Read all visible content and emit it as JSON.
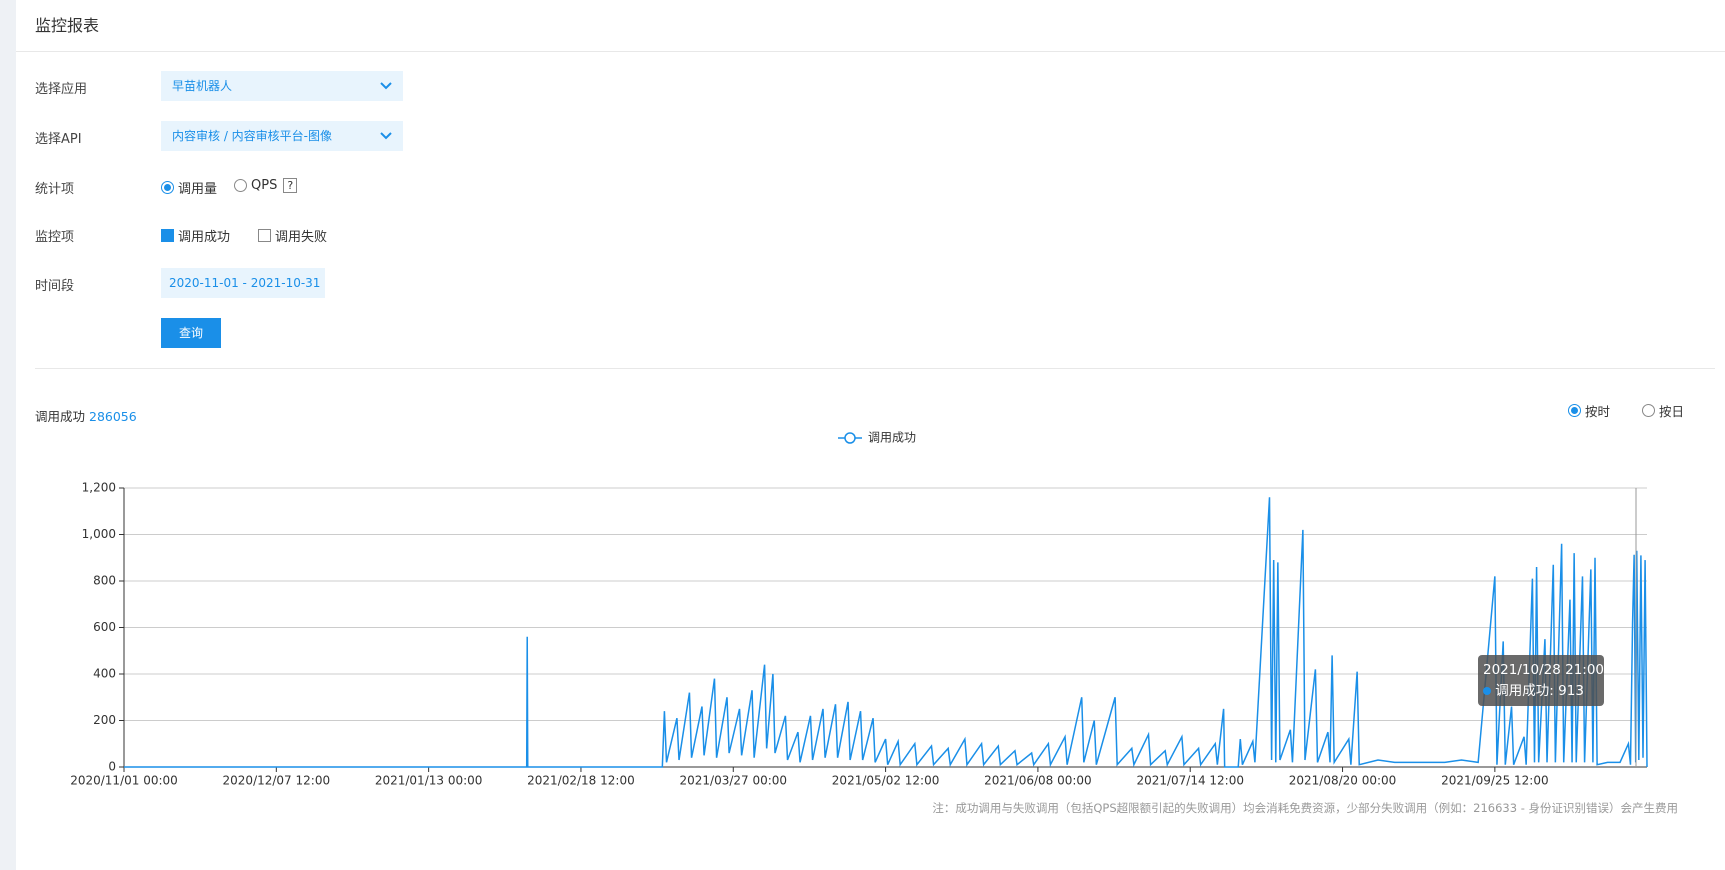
{
  "header": {
    "title": "监控报表"
  },
  "form": {
    "app": {
      "label": "选择应用",
      "value": "早苗机器人"
    },
    "api": {
      "label": "选择API",
      "value": "内容审核 / 内容审核平台-图像"
    },
    "stat": {
      "label": "统计项",
      "options": [
        "调用量",
        "QPS"
      ],
      "help": "?"
    },
    "monitor": {
      "label": "监控项",
      "options": [
        "调用成功",
        "调用失败"
      ]
    },
    "period": {
      "label": "时间段",
      "value": "2020-11-01 - 2021-10-31"
    },
    "submit": "查询"
  },
  "summary": {
    "label": "调用成功",
    "value": 286056
  },
  "granularity": [
    "按时",
    "按日"
  ],
  "tooltip": {
    "title": "2021/10/28 21:00",
    "label": "调用成功",
    "value": 913
  },
  "note": "注：成功调用与失败调用（包括QPS超限额引起的失败调用）均会消耗免费资源，少部分失败调用（例如：216633 - 身份证识别错误）会产生费用",
  "chart_data": {
    "type": "line",
    "grid": true,
    "xlim": [
      "2020/11/01 00:00",
      "2021/10/31 23:00"
    ],
    "xticks": [
      "2020/11/01 00:00",
      "2020/12/07 12:00",
      "2021/01/13 00:00",
      "2021/02/18 12:00",
      "2021/03/27 00:00",
      "2021/05/02 12:00",
      "2021/06/08 00:00",
      "2021/07/14 12:00",
      "2021/08/20 00:00",
      "2021/09/25 12:00"
    ],
    "ylim": [
      0,
      1200
    ],
    "yticks": [
      0,
      200,
      400,
      600,
      800,
      {
        "value": 1000,
        "label": "1,000"
      },
      {
        "value": 1200,
        "label": "1,200"
      }
    ],
    "x": [
      "2020/11/01 00:00",
      "2021/02/05 12:00",
      "2021/02/05 15:00",
      "2021/02/05 18:00",
      "2021/03/10 00:00",
      "2021/03/10 12:00",
      "2021/03/11 00:00",
      "2021/03/13 12:00",
      "2021/03/14 00:00",
      "2021/03/16 12:00",
      "2021/03/17 00:00",
      "2021/03/19 12:00",
      "2021/03/20 00:00",
      "2021/03/22 12:00",
      "2021/03/23 00:00",
      "2021/03/25 12:00",
      "2021/03/26 00:00",
      "2021/03/28 12:00",
      "2021/03/29 00:00",
      "2021/03/31 12:00",
      "2021/04/01 00:00",
      "2021/04/03 12:00",
      "2021/04/04 00:00",
      "2021/04/05 12:00",
      "2021/04/06 00:00",
      "2021/04/08 12:00",
      "2021/04/09 00:00",
      "2021/04/11 12:00",
      "2021/04/12 00:00",
      "2021/04/14 12:00",
      "2021/04/15 00:00",
      "2021/04/17 12:00",
      "2021/04/18 00:00",
      "2021/04/20 12:00",
      "2021/04/21 00:00",
      "2021/04/23 12:00",
      "2021/04/24 00:00",
      "2021/04/26 12:00",
      "2021/04/27 00:00",
      "2021/04/29 12:00",
      "2021/04/30 00:00",
      "2021/05/02 12:00",
      "2021/05/03 00:00",
      "2021/05/05 12:00",
      "2021/05/06 00:00",
      "2021/05/09 12:00",
      "2021/05/10 00:00",
      "2021/05/13 12:00",
      "2021/05/14 00:00",
      "2021/05/17 12:00",
      "2021/05/18 00:00",
      "2021/05/21 12:00",
      "2021/05/22 00:00",
      "2021/05/25 12:00",
      "2021/05/26 00:00",
      "2021/05/29 12:00",
      "2021/05/30 00:00",
      "2021/06/02 12:00",
      "2021/06/03 00:00",
      "2021/06/06 12:00",
      "2021/06/07 00:00",
      "2021/06/10 12:00",
      "2021/06/11 00:00",
      "2021/06/14 12:00",
      "2021/06/15 00:00",
      "2021/06/18 12:00",
      "2021/06/19 00:00",
      "2021/06/21 12:00",
      "2021/06/22 00:00",
      "2021/06/26 12:00",
      "2021/06/27 00:00",
      "2021/06/30 12:00",
      "2021/07/01 00:00",
      "2021/07/04 12:00",
      "2021/07/05 00:00",
      "2021/07/08 12:00",
      "2021/07/09 00:00",
      "2021/07/12 12:00",
      "2021/07/13 00:00",
      "2021/07/16 12:00",
      "2021/07/17 00:00",
      "2021/07/20 12:00",
      "2021/07/21 00:00",
      "2021/07/22 12:00",
      "2021/07/22 18:00",
      "2021/07/26 00:00",
      "2021/07/26 12:00",
      "2021/07/27 00:00",
      "2021/07/29 12:00",
      "2021/07/30 00:00",
      "2021/08/02 12:00",
      "2021/08/03 00:00",
      "2021/08/03 12:00",
      "2021/08/04 00:00",
      "2021/08/04 12:00",
      "2021/08/05 00:00",
      "2021/08/07 12:00",
      "2021/08/08 00:00",
      "2021/08/10 12:00",
      "2021/08/11 00:00",
      "2021/08/13 12:00",
      "2021/08/14 00:00",
      "2021/08/16 12:00",
      "2021/08/17 00:00",
      "2021/08/17 12:00",
      "2021/08/18 00:00",
      "2021/08/21 12:00",
      "2021/08/22 00:00",
      "2021/08/23 12:00",
      "2021/08/24 00:00",
      "2021/08/28 12:00",
      "2021/09/01 12:00",
      "2021/09/05 12:00",
      "2021/09/09 12:00",
      "2021/09/13 12:00",
      "2021/09/17 12:00",
      "2021/09/21 12:00",
      "2021/09/25 12:00",
      "2021/09/26 00:00",
      "2021/09/27 12:00",
      "2021/09/28 00:00",
      "2021/09/29 12:00",
      "2021/09/30 00:00",
      "2021/10/02 12:00",
      "2021/10/03 00:00",
      "2021/10/04 12:00",
      "2021/10/05 00:00",
      "2021/10/05 12:00",
      "2021/10/06 00:00",
      "2021/10/07 12:00",
      "2021/10/08 00:00",
      "2021/10/09 12:00",
      "2021/10/10 00:00",
      "2021/10/11 12:00",
      "2021/10/12 00:00",
      "2021/10/13 12:00",
      "2021/10/14 00:00",
      "2021/10/14 12:00",
      "2021/10/15 00:00",
      "2021/10/16 12:00",
      "2021/10/17 00:00",
      "2021/10/18 12:00",
      "2021/10/19 00:00",
      "2021/10/19 12:00",
      "2021/10/20 00:00",
      "2021/10/22 12:00",
      "2021/10/25 12:00",
      "2021/10/27 12:00",
      "2021/10/28 00:00",
      "2021/10/28 12:00",
      "2021/10/28 21:00",
      "2021/10/29 06:00",
      "2021/10/29 12:00",
      "2021/10/30 00:00",
      "2021/10/30 12:00",
      "2021/10/31 00:00",
      "2021/10/31 12:00",
      "2021/10/31 23:00"
    ],
    "series": [
      {
        "name": "调用成功",
        "color": "#1a8fe8",
        "values": [
          0,
          0,
          560,
          0,
          0,
          240,
          20,
          210,
          30,
          320,
          40,
          260,
          50,
          380,
          40,
          300,
          60,
          250,
          50,
          330,
          40,
          440,
          80,
          400,
          60,
          220,
          30,
          150,
          20,
          220,
          30,
          250,
          40,
          270,
          40,
          280,
          30,
          240,
          30,
          210,
          20,
          120,
          10,
          110,
          10,
          100,
          10,
          90,
          10,
          80,
          10,
          120,
          10,
          100,
          10,
          90,
          10,
          70,
          10,
          60,
          10,
          100,
          10,
          130,
          10,
          300,
          20,
          200,
          10,
          300,
          10,
          80,
          10,
          140,
          10,
          70,
          10,
          130,
          10,
          80,
          10,
          100,
          10,
          250,
          0,
          0,
          120,
          10,
          110,
          20,
          1160,
          30,
          890,
          20,
          880,
          30,
          160,
          20,
          1020,
          30,
          420,
          20,
          150,
          20,
          480,
          20,
          120,
          10,
          410,
          10,
          30,
          20,
          20,
          20,
          20,
          30,
          20,
          820,
          10,
          540,
          10,
          260,
          10,
          130,
          10,
          810,
          20,
          860,
          20,
          550,
          20,
          870,
          20,
          960,
          20,
          720,
          20,
          920,
          20,
          820,
          20,
          850,
          20,
          900,
          10,
          20,
          20,
          100,
          10,
          620,
          913,
          20,
          930,
          30,
          910,
          40,
          890,
          0
        ]
      }
    ]
  }
}
